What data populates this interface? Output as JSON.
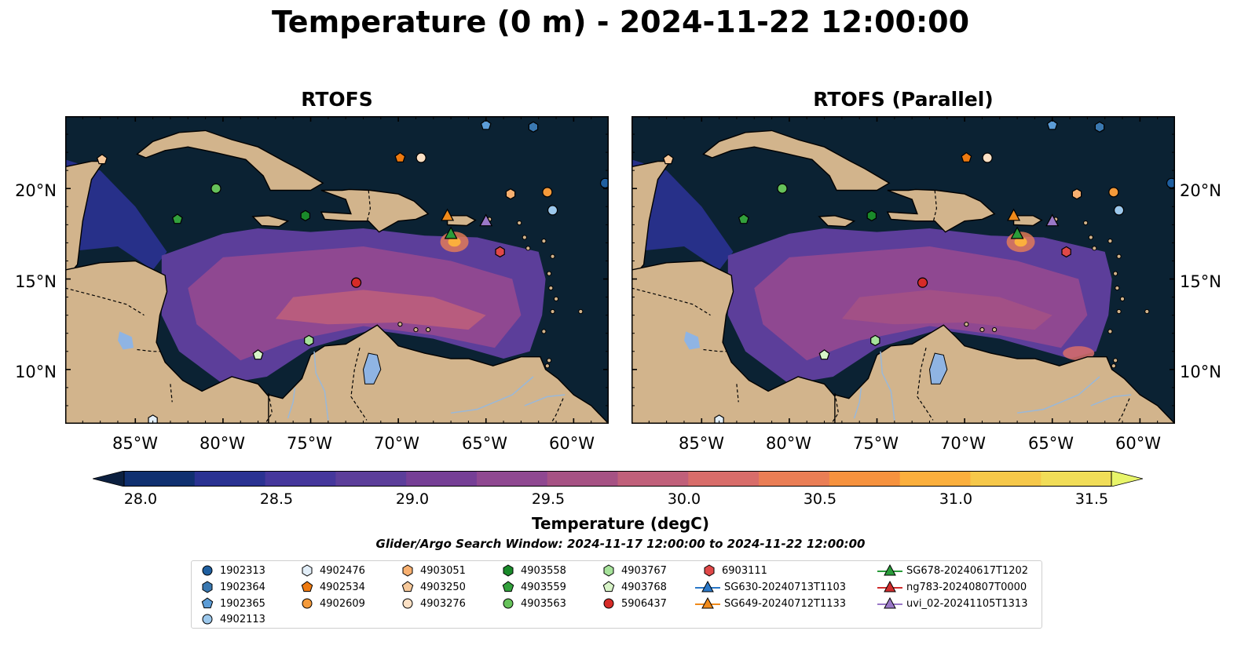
{
  "figure": {
    "title": "Temperature (0 m) - 2024-11-22 12:00:00",
    "panels": [
      {
        "title": "RTOFS"
      },
      {
        "title": "RTOFS (Parallel)"
      }
    ],
    "x_ticks": [
      "85°W",
      "80°W",
      "75°W",
      "70°W",
      "65°W",
      "60°W"
    ],
    "y_ticks": [
      "20°N",
      "15°N",
      "10°N"
    ]
  },
  "map_extent": {
    "lon": [
      -89,
      -58
    ],
    "lat": [
      7,
      24
    ]
  },
  "colorbar": {
    "label": "Temperature (degC)",
    "ticks": [
      "28.0",
      "28.5",
      "29.0",
      "29.5",
      "30.0",
      "30.5",
      "31.0",
      "31.5"
    ],
    "range": [
      27.75,
      31.75
    ],
    "colors": [
      "#0c2040",
      "#103070",
      "#2a3292",
      "#45379c",
      "#5c3e9a",
      "#763f96",
      "#8f4891",
      "#a65284",
      "#c0607a",
      "#d86d6a",
      "#ea7e55",
      "#f6923e",
      "#fbaf3d",
      "#f6c84a",
      "#f1dd58",
      "#e8f56a"
    ]
  },
  "search_window": "Glider/Argo Search Window: 2024-11-17 12:00:00 to 2024-11-22 12:00:00",
  "colors": {
    "ocean_deep": "#0b2233",
    "land": "#d2b48c",
    "lake": "#8fb4e3",
    "river": "#9ab8d8"
  },
  "legend": {
    "columns": [
      [
        {
          "label": "1902313",
          "marker": "circle",
          "color": "#1f5fa0"
        },
        {
          "label": "1902364",
          "marker": "hexagon",
          "color": "#3a78b0"
        },
        {
          "label": "1902365",
          "marker": "pentagon",
          "color": "#5c9cd6"
        },
        {
          "label": "4902113",
          "marker": "circle",
          "color": "#9cc8ec"
        }
      ],
      [
        {
          "label": "4902476",
          "marker": "hexagon",
          "color": "#e2eef8"
        },
        {
          "label": "4902534",
          "marker": "pentagon",
          "color": "#ee7a10"
        },
        {
          "label": "4902609",
          "marker": "circle",
          "color": "#f49a3a"
        }
      ],
      [
        {
          "label": "4903051",
          "marker": "hexagon",
          "color": "#f8b070"
        },
        {
          "label": "4903250",
          "marker": "pentagon",
          "color": "#f6c89a"
        },
        {
          "label": "4903276",
          "marker": "circle",
          "color": "#fbe0c4"
        }
      ],
      [
        {
          "label": "4903558",
          "marker": "hexagon",
          "color": "#1a8a2a"
        },
        {
          "label": "4903559",
          "marker": "pentagon",
          "color": "#33a13c"
        },
        {
          "label": "4903563",
          "marker": "circle",
          "color": "#66c25a"
        }
      ],
      [
        {
          "label": "4903767",
          "marker": "hexagon",
          "color": "#a6e29a"
        },
        {
          "label": "4903768",
          "marker": "pentagon",
          "color": "#d8f4c8"
        },
        {
          "label": "5906437",
          "marker": "circle",
          "color": "#d62b28"
        }
      ],
      [
        {
          "label": "6903111",
          "marker": "hexagon",
          "color": "#e04848"
        },
        {
          "label": "SG630-20240713T1103",
          "marker": "triangle",
          "color": "#2a78c8"
        },
        {
          "label": "SG649-20240712T1133",
          "marker": "triangle",
          "color": "#f08a1a"
        }
      ],
      [
        {
          "label": "SG678-20240617T1202",
          "marker": "triangle",
          "color": "#2a9c3a"
        },
        {
          "label": "ng783-20240807T0000",
          "marker": "triangle",
          "color": "#d02c2c"
        },
        {
          "label": "uvi_02-20241105T1313",
          "marker": "triangle",
          "color": "#9a78c8"
        }
      ]
    ]
  },
  "observations": [
    {
      "id": "1902313",
      "lon": -58.2,
      "lat": 20.3
    },
    {
      "id": "1902364",
      "lon": -62.3,
      "lat": 23.4
    },
    {
      "id": "1902365",
      "lon": -65.0,
      "lat": 23.5
    },
    {
      "id": "4902113",
      "lon": -61.2,
      "lat": 18.8
    },
    {
      "id": "4902476",
      "lon": -84.0,
      "lat": 7.2
    },
    {
      "id": "4902534",
      "lon": -69.9,
      "lat": 21.7
    },
    {
      "id": "4902609",
      "lon": -61.5,
      "lat": 19.8
    },
    {
      "id": "4903051",
      "lon": -63.6,
      "lat": 19.7
    },
    {
      "id": "4903250",
      "lon": -86.9,
      "lat": 21.6
    },
    {
      "id": "4903276",
      "lon": -68.7,
      "lat": 21.7
    },
    {
      "id": "4903558",
      "lon": -75.3,
      "lat": 18.5
    },
    {
      "id": "4903559",
      "lon": -82.6,
      "lat": 18.3
    },
    {
      "id": "4903563",
      "lon": -80.4,
      "lat": 20.0
    },
    {
      "id": "4903767",
      "lon": -75.1,
      "lat": 11.6
    },
    {
      "id": "4903768",
      "lon": -78.0,
      "lat": 10.8
    },
    {
      "id": "5906437",
      "lon": -72.4,
      "lat": 14.8
    },
    {
      "id": "6903111",
      "lon": -64.2,
      "lat": 16.5
    },
    {
      "id": "SG649-20240712T1133",
      "lon": -67.2,
      "lat": 18.5
    },
    {
      "id": "SG678-20240617T1202",
      "lon": -67.0,
      "lat": 17.5
    },
    {
      "id": "uvi_02-20241105T1313",
      "lon": -65.0,
      "lat": 18.2
    }
  ]
}
